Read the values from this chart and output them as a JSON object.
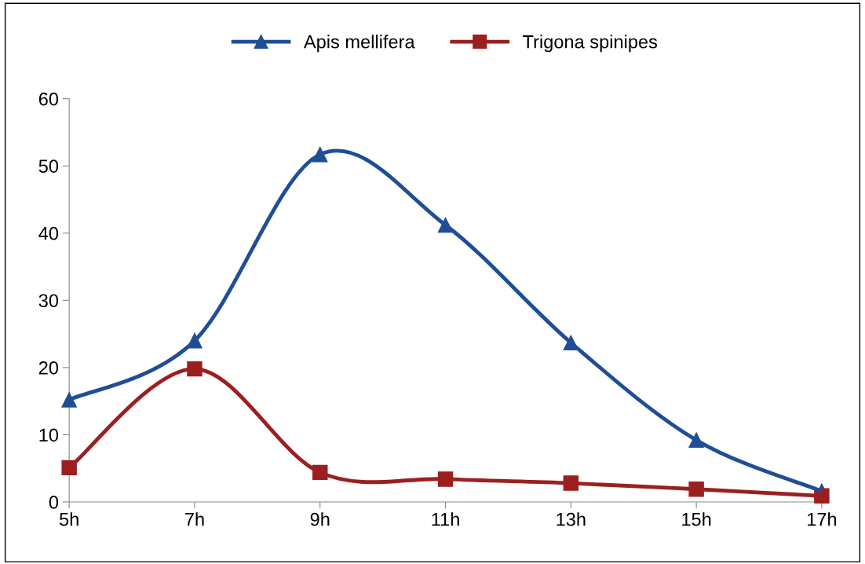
{
  "chart_data": {
    "type": "line",
    "categories": [
      "5h",
      "7h",
      "9h",
      "11h",
      "13h",
      "15h",
      "17h"
    ],
    "series": [
      {
        "name": "Apis mellifera",
        "color": "#1f4e96",
        "marker": "triangle",
        "values": [
          15.2,
          24.0,
          51.7,
          41.2,
          23.7,
          9.2,
          1.6
        ]
      },
      {
        "name": "Trigona spinipes",
        "color": "#9c1f1f",
        "marker": "square",
        "values": [
          5.1,
          19.8,
          4.4,
          3.4,
          2.8,
          1.9,
          0.9
        ]
      }
    ],
    "ylim": [
      0,
      60
    ],
    "yticks": [
      0,
      10,
      20,
      30,
      40,
      50,
      60
    ],
    "grid": false,
    "legend": "top",
    "line_style": "solid"
  }
}
